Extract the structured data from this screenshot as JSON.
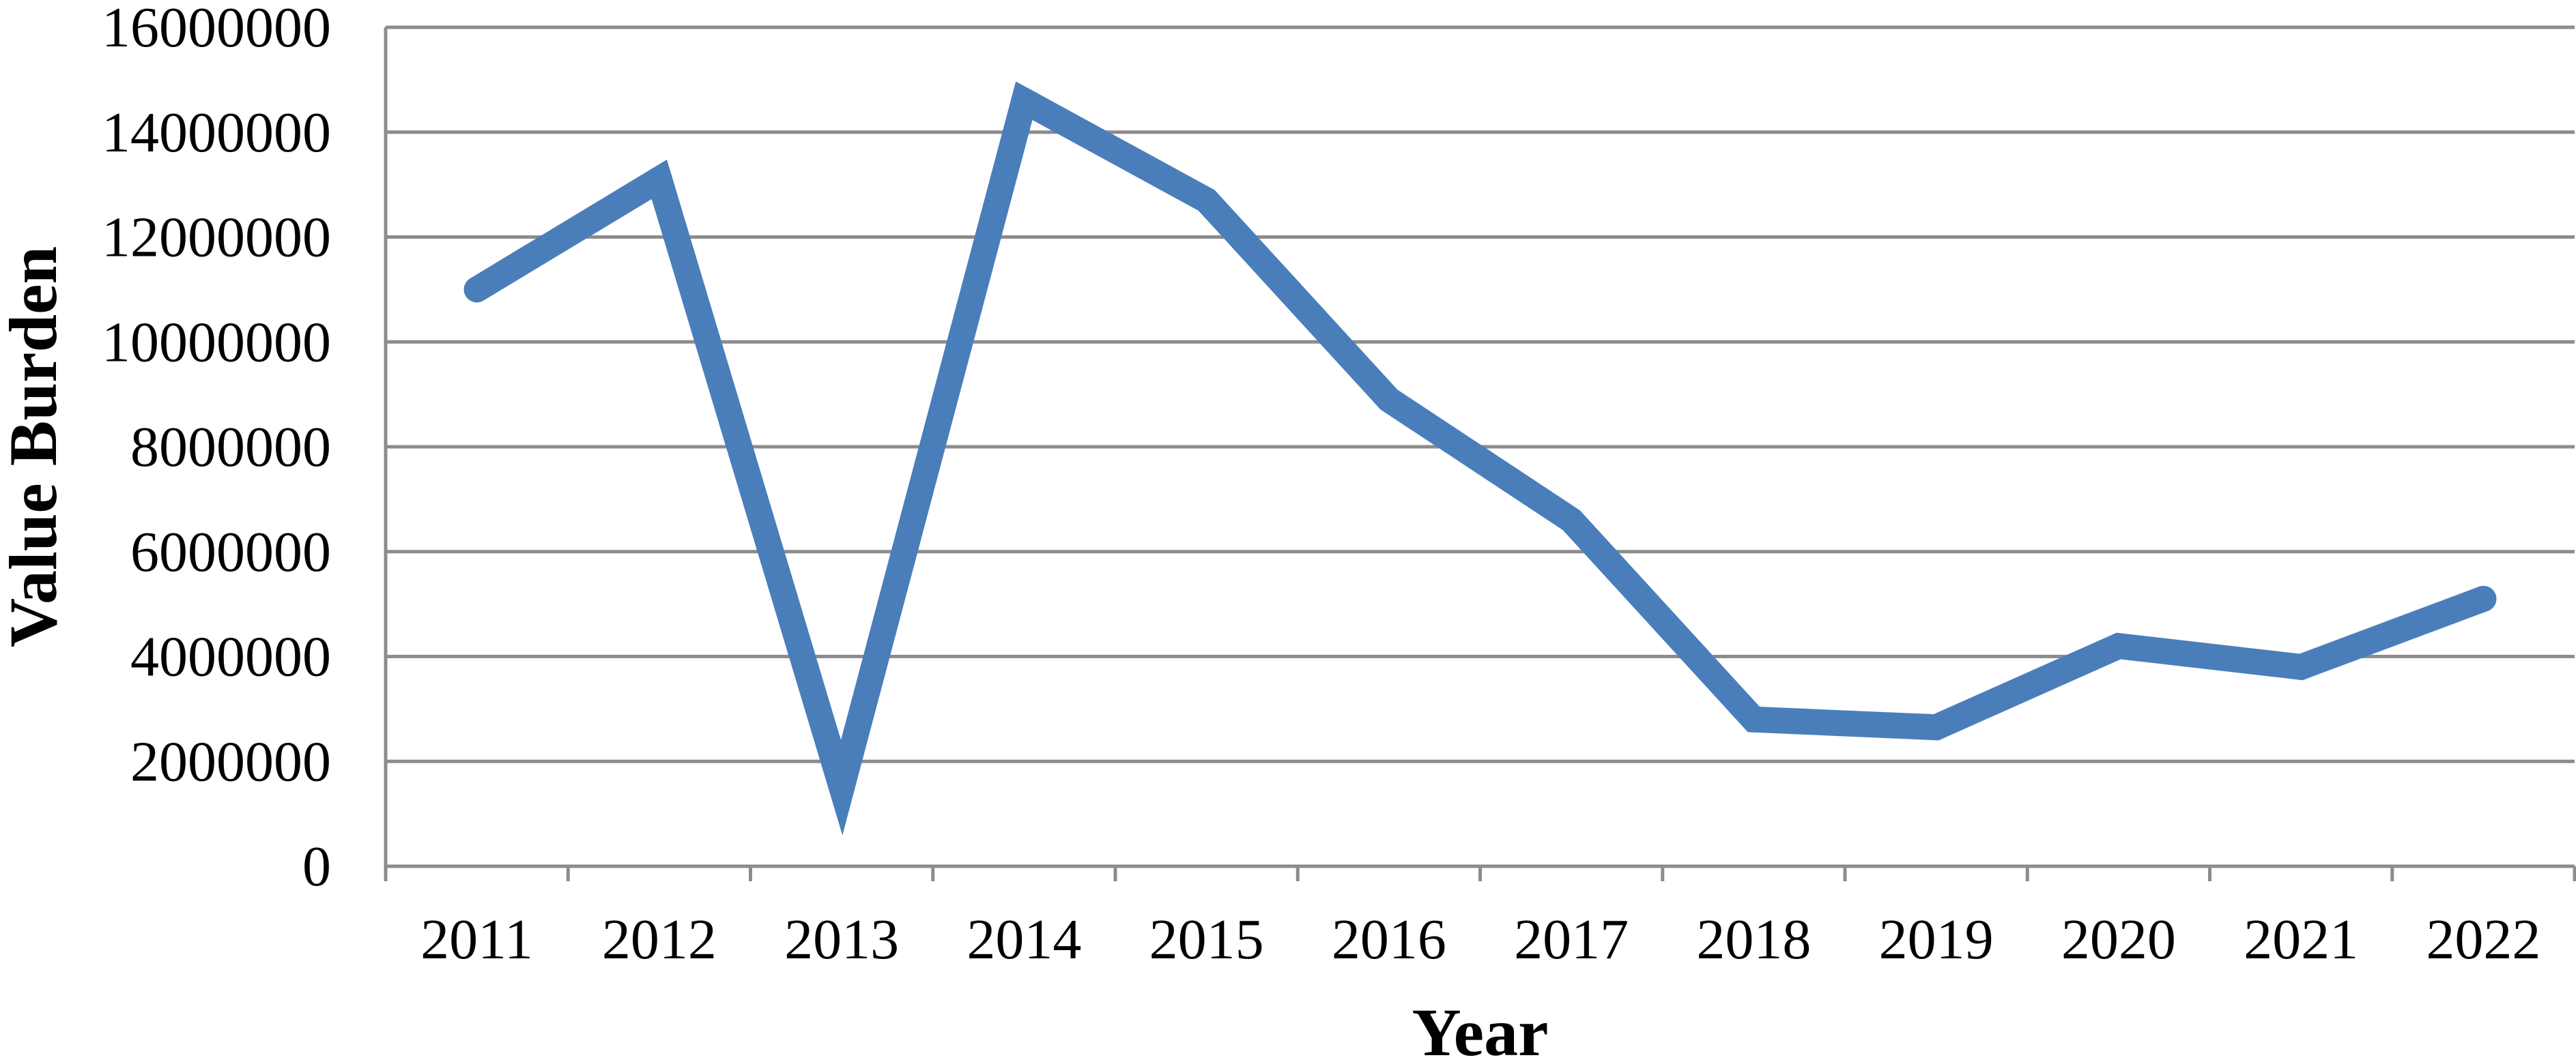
{
  "chart_data": {
    "type": "line",
    "xlabel": "Year",
    "ylabel": "Value Burden",
    "ylim": [
      0,
      16000000
    ],
    "y_ticks": [
      0,
      2000000,
      4000000,
      6000000,
      8000000,
      10000000,
      12000000,
      14000000,
      16000000
    ],
    "categories": [
      "2011",
      "2012",
      "2013",
      "2014",
      "2015",
      "2016",
      "2017",
      "2018",
      "2019",
      "2020",
      "2021",
      "2022"
    ],
    "series": [
      {
        "values": [
          11000000,
          13100000,
          1500000,
          14600000,
          12700000,
          8900000,
          6600000,
          2800000,
          2650000,
          4200000,
          3800000,
          5100000
        ],
        "color": "#4a7ebb"
      }
    ],
    "grid": true,
    "legend": "none"
  }
}
